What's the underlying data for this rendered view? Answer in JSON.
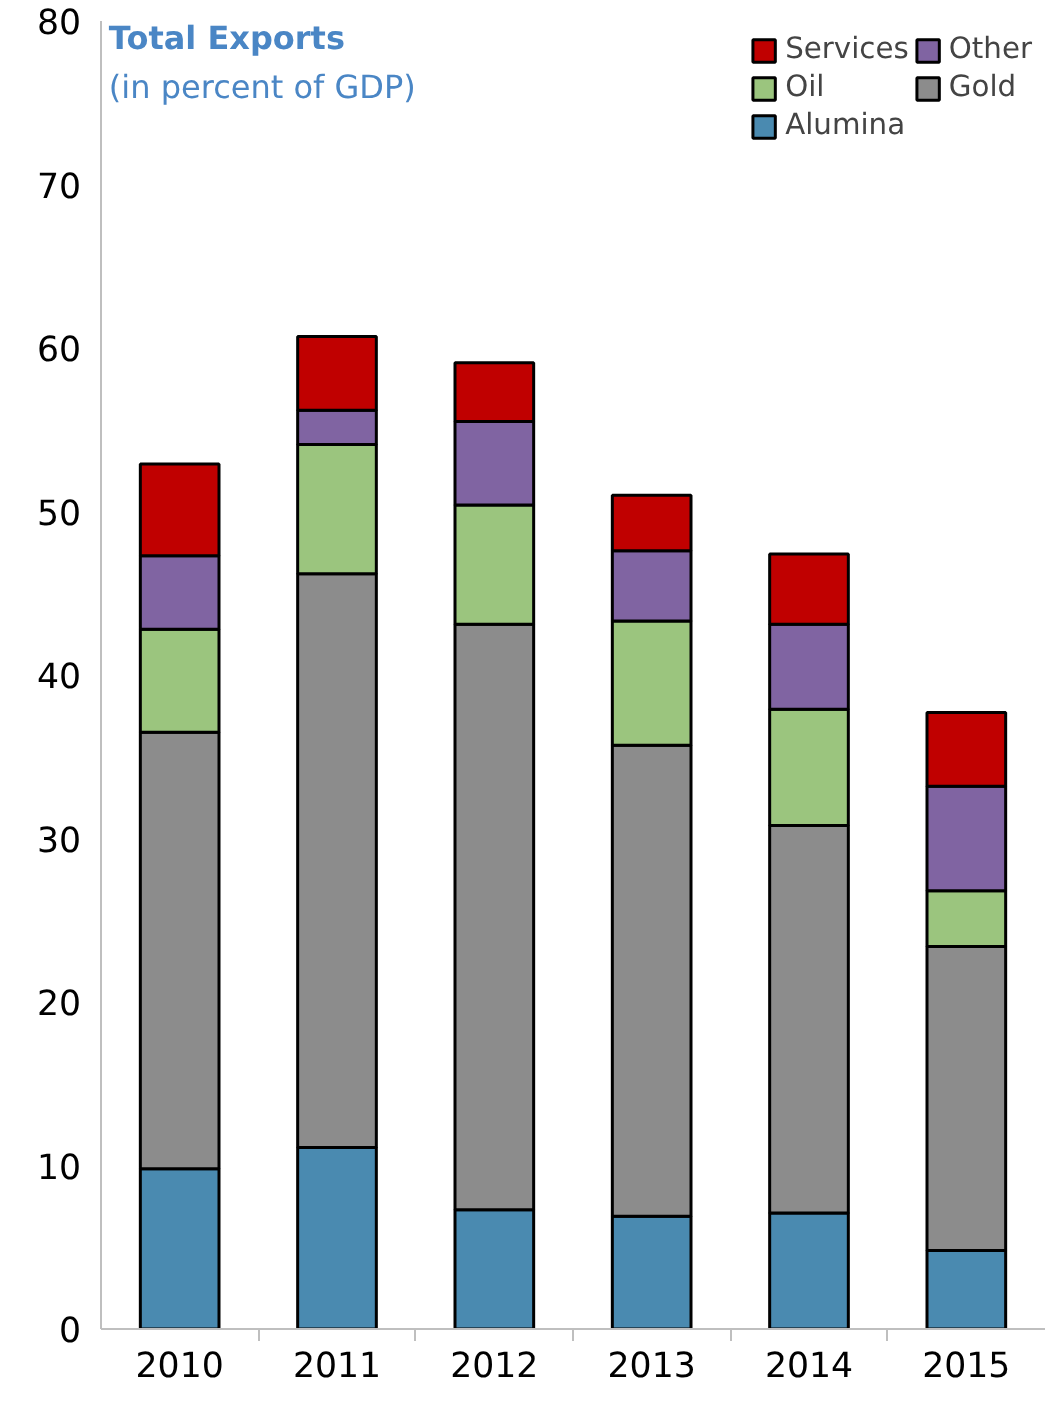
{
  "chart_data": {
    "type": "bar",
    "title": "Total Exports",
    "subtitle": "(in percent of GDP)",
    "categories": [
      "2010",
      "2011",
      "2012",
      "2013",
      "2014",
      "2015"
    ],
    "stacked": true,
    "series": [
      {
        "name": "Alumina",
        "color": "#4a8ab0",
        "values": [
          9.8,
          11.1,
          7.3,
          6.9,
          7.1,
          4.8
        ]
      },
      {
        "name": "Gold",
        "color": "#8c8c8c",
        "values": [
          26.7,
          35.1,
          35.8,
          28.8,
          23.7,
          18.6
        ]
      },
      {
        "name": "Oil",
        "color": "#9bc57e",
        "values": [
          6.3,
          7.9,
          7.3,
          7.6,
          7.1,
          3.4
        ]
      },
      {
        "name": "Other",
        "color": "#8064a2",
        "values": [
          4.5,
          2.1,
          5.1,
          4.3,
          5.2,
          6.4
        ]
      },
      {
        "name": "Services",
        "color": "#c00000",
        "values": [
          5.6,
          4.5,
          3.6,
          3.4,
          4.3,
          4.5
        ]
      }
    ],
    "ylim": [
      0,
      80
    ],
    "yticks": [
      0,
      10,
      20,
      30,
      40,
      50,
      60,
      70,
      80
    ],
    "grid": false,
    "legend": "top right"
  }
}
